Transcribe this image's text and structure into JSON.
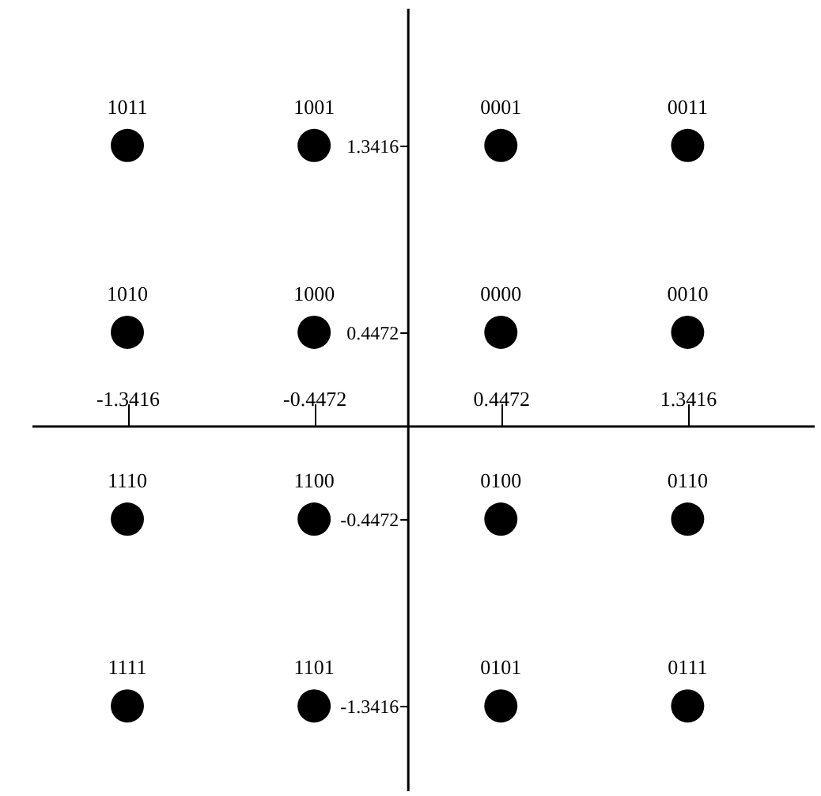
{
  "chart_data": {
    "type": "scatter",
    "x": [
      -1.3416,
      -0.4472,
      0.4472,
      1.3416,
      -1.3416,
      -0.4472,
      0.4472,
      1.3416,
      -1.3416,
      -0.4472,
      0.4472,
      1.3416,
      -1.3416,
      -0.4472,
      0.4472,
      1.3416
    ],
    "series": [
      {
        "color": "#000000",
        "values": [
          1.3416,
          1.3416,
          1.3416,
          1.3416,
          0.4472,
          0.4472,
          0.4472,
          0.4472,
          -0.4472,
          -0.4472,
          -0.4472,
          -0.4472,
          -1.3416,
          -1.3416,
          -1.3416,
          -1.3416
        ]
      }
    ],
    "marker": "circle",
    "xlim": [
      -1.8,
      1.95
    ],
    "ylim": [
      -1.75,
      2.0
    ],
    "xticks": [
      -1.3416,
      -0.4472,
      0.4472,
      1.3416
    ],
    "yticks": [
      -1.3416,
      -0.4472,
      0.4472,
      1.3416
    ],
    "grid": false,
    "annotations": [
      {
        "text": "1011",
        "x": -1.3416,
        "y": 1.3416
      },
      {
        "text": "1001",
        "x": -0.4472,
        "y": 1.3416
      },
      {
        "text": "0001",
        "x": 0.4472,
        "y": 1.3416
      },
      {
        "text": "0011",
        "x": 1.3416,
        "y": 1.3416
      },
      {
        "text": "1010",
        "x": -1.3416,
        "y": 0.4472
      },
      {
        "text": "1000",
        "x": -0.4472,
        "y": 0.4472
      },
      {
        "text": "0000",
        "x": 0.4472,
        "y": 0.4472
      },
      {
        "text": "0010",
        "x": 1.3416,
        "y": 0.4472
      },
      {
        "text": "1110",
        "x": -1.3416,
        "y": -0.4472
      },
      {
        "text": "1100",
        "x": -0.4472,
        "y": -0.4472
      },
      {
        "text": "0100",
        "x": 0.4472,
        "y": -0.4472
      },
      {
        "text": "0110",
        "x": 1.3416,
        "y": -0.4472
      },
      {
        "text": "1111",
        "x": -1.3416,
        "y": -1.3416
      },
      {
        "text": "1101",
        "x": -0.4472,
        "y": -1.3416
      },
      {
        "text": "0101",
        "x": 0.4472,
        "y": -1.3416
      },
      {
        "text": "0111",
        "x": 1.3416,
        "y": -1.3416
      }
    ]
  }
}
